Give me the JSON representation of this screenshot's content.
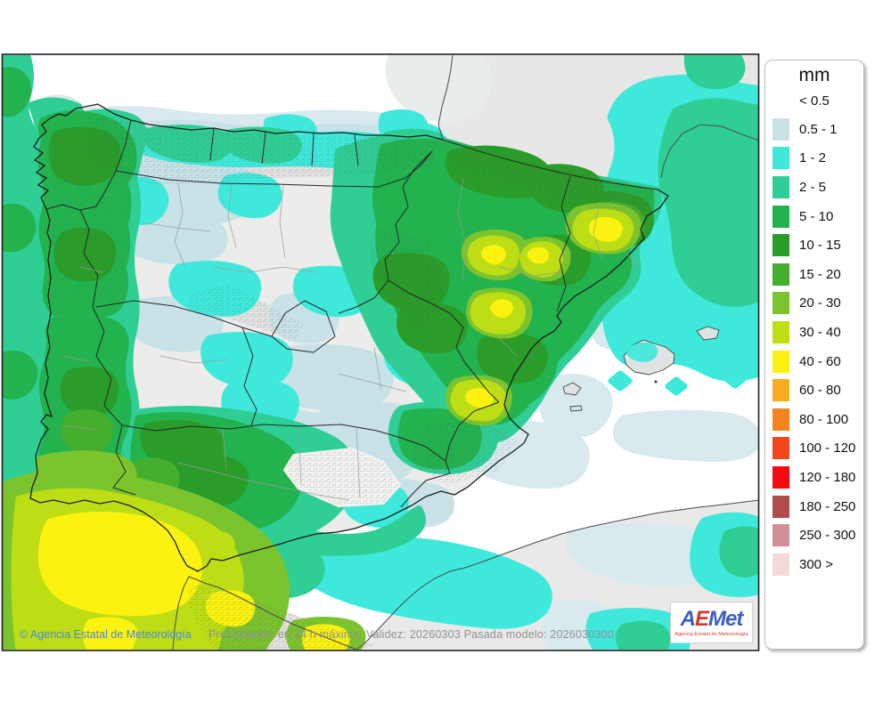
{
  "legend": {
    "title": "mm",
    "no_color_label": "< 0.5",
    "items": [
      {
        "label": "0.5 - 1",
        "color": "#C9E2E8"
      },
      {
        "label": "1 - 2",
        "color": "#3FE8DB"
      },
      {
        "label": "2 - 5",
        "color": "#2FCE95"
      },
      {
        "label": "5 - 10",
        "color": "#22B24E"
      },
      {
        "label": "10 - 15",
        "color": "#2A9C29"
      },
      {
        "label": "15 - 20",
        "color": "#45AE2D"
      },
      {
        "label": "20 - 30",
        "color": "#7BC42E"
      },
      {
        "label": "30 - 40",
        "color": "#BDDE14"
      },
      {
        "label": "40 - 60",
        "color": "#FBF30F"
      },
      {
        "label": "60 - 80",
        "color": "#F6AD1F"
      },
      {
        "label": "80 - 100",
        "color": "#F6821D"
      },
      {
        "label": "100 - 120",
        "color": "#F1471D"
      },
      {
        "label": "120 - 180",
        "color": "#F60A10"
      },
      {
        "label": "180 - 250",
        "color": "#B04B4E"
      },
      {
        "label": "250 - 300",
        "color": "#D18F96"
      },
      {
        "label": "300 >",
        "color": "#F2DADA"
      }
    ]
  },
  "footer": {
    "copyright": "© Agencia Estatal de Meteorología",
    "copyright_color": "#4C86D9",
    "validity": "Precipitación en 24 h máxima. Validez: 20260303 Pasada modelo: 2026030300",
    "validity_color": "#8F9193"
  },
  "logo": {
    "letter_a": "A",
    "letter_e": "E",
    "letters_met": "Met",
    "subtitle": "Agencia Estatal de Meteorología",
    "blue": "#3A5FC0",
    "red": "#D93A2B"
  },
  "map": {
    "palette": {
      "sea": "#FFFFFF",
      "land": "#ECECEA",
      "france": "#E7E8E6",
      "africa": "#E9E9E7",
      "terrain": "#E2E2E0",
      "terrain_light": "#F2F2F0",
      "island": "#DEE4E3",
      "haze": "#E9ECEC",
      "lightblue_sea": "#D9EAEE",
      "lightblue_land": "#C8E2E8",
      "cyan": "#3EE9DC",
      "green_2_5": "#2FCE95",
      "green_5_10": "#22B24E",
      "green_10_15": "#2A9C29",
      "green_15_20": "#45AE2D",
      "yellowgreen_20_30": "#7BC42E",
      "yellowgreen_30_40": "#BDDE14",
      "yellow_40_60": "#FBF30F",
      "coastline": "#1C1C1C",
      "border_region": "#262626",
      "border_province": "#9A9A9A",
      "frame": "#1F1F1F"
    }
  }
}
